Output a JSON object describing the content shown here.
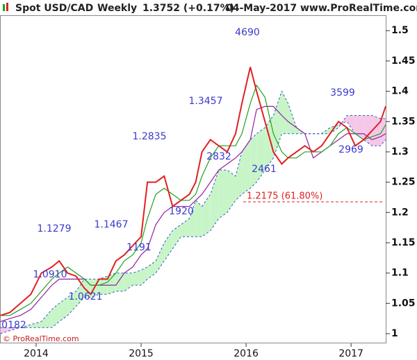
{
  "header": [
    "Spot USD/CAD",
    "Weekly",
    "1.3752 (+0.17%)",
    "04-May-2017",
    "www.ProRealTime.com"
  ],
  "footer": "© ProRealTime.com",
  "chart_data": {
    "type": "line",
    "x": [
      2013.66,
      2013.75,
      2013.85,
      2013.95,
      2014.05,
      2014.15,
      2014.22,
      2014.3,
      2014.38,
      2014.46,
      2014.52,
      2014.6,
      2014.68,
      2014.76,
      2014.84,
      2014.92,
      2015.0,
      2015.06,
      2015.14,
      2015.22,
      2015.3,
      2015.38,
      2015.46,
      2015.52,
      2015.58,
      2015.66,
      2015.74,
      2015.82,
      2015.9,
      2015.96,
      2016.04,
      2016.1,
      2016.18,
      2016.26,
      2016.34,
      2016.4,
      2016.48,
      2016.56,
      2016.64,
      2016.72,
      2016.8,
      2016.88,
      2016.96,
      2017.04,
      2017.12,
      2017.2,
      2017.28,
      2017.33
    ],
    "series": [
      {
        "color": "#e02020",
        "values": [
          1.03,
          1.035,
          1.05,
          1.065,
          1.1,
          1.11,
          1.12,
          1.1,
          1.095,
          1.075,
          1.065,
          1.09,
          1.09,
          1.12,
          1.13,
          1.145,
          1.16,
          1.25,
          1.25,
          1.26,
          1.21,
          1.22,
          1.23,
          1.25,
          1.3,
          1.32,
          1.31,
          1.3,
          1.33,
          1.38,
          1.44,
          1.4,
          1.35,
          1.3,
          1.28,
          1.29,
          1.3,
          1.31,
          1.3,
          1.31,
          1.33,
          1.35,
          1.34,
          1.31,
          1.32,
          1.335,
          1.35,
          1.3752
        ]
      },
      {
        "color": "#20a020",
        "values": [
          1.03,
          1.03,
          1.04,
          1.05,
          1.07,
          1.09,
          1.1,
          1.11,
          1.1,
          1.09,
          1.08,
          1.08,
          1.085,
          1.1,
          1.12,
          1.13,
          1.15,
          1.19,
          1.23,
          1.24,
          1.23,
          1.22,
          1.22,
          1.23,
          1.26,
          1.29,
          1.31,
          1.31,
          1.31,
          1.33,
          1.38,
          1.41,
          1.39,
          1.33,
          1.3,
          1.29,
          1.29,
          1.3,
          1.3,
          1.3,
          1.31,
          1.33,
          1.34,
          1.33,
          1.32,
          1.325,
          1.33,
          1.345
        ]
      },
      {
        "color": "#9020a0",
        "values": [
          1.02,
          1.025,
          1.03,
          1.04,
          1.06,
          1.08,
          1.09,
          1.09,
          1.09,
          1.09,
          1.08,
          1.08,
          1.08,
          1.08,
          1.1,
          1.11,
          1.13,
          1.14,
          1.18,
          1.2,
          1.21,
          1.21,
          1.21,
          1.22,
          1.23,
          1.25,
          1.27,
          1.28,
          1.29,
          1.3,
          1.32,
          1.37,
          1.375,
          1.375,
          1.36,
          1.35,
          1.34,
          1.33,
          1.29,
          1.3,
          1.31,
          1.32,
          1.33,
          1.33,
          1.33,
          1.32,
          1.325,
          1.33
        ]
      }
    ],
    "cloud": {
      "up_color": "#c8f5c8",
      "down_color": "#f5c8e8",
      "line_color": "#3355cc",
      "span_a": [
        1.0,
        1.005,
        1.01,
        1.015,
        1.02,
        1.04,
        1.05,
        1.06,
        1.07,
        1.09,
        1.09,
        1.09,
        1.095,
        1.1,
        1.1,
        1.1,
        1.105,
        1.11,
        1.12,
        1.15,
        1.17,
        1.18,
        1.19,
        1.22,
        1.21,
        1.23,
        1.27,
        1.27,
        1.26,
        1.3,
        1.32,
        1.33,
        1.34,
        1.36,
        1.4,
        1.38,
        1.34,
        1.33,
        1.33,
        1.33,
        1.34,
        1.345,
        1.35,
        1.33,
        1.32,
        1.31,
        1.31,
        1.32
      ],
      "span_b": [
        1.01,
        1.01,
        1.01,
        1.01,
        1.01,
        1.01,
        1.02,
        1.03,
        1.045,
        1.06,
        1.06,
        1.065,
        1.065,
        1.07,
        1.07,
        1.08,
        1.08,
        1.09,
        1.1,
        1.12,
        1.14,
        1.16,
        1.16,
        1.16,
        1.16,
        1.17,
        1.19,
        1.2,
        1.22,
        1.23,
        1.24,
        1.25,
        1.27,
        1.29,
        1.33,
        1.33,
        1.33,
        1.33,
        1.33,
        1.33,
        1.33,
        1.34,
        1.36,
        1.36,
        1.36,
        1.36,
        1.355,
        1.355
      ]
    },
    "levels": [
      {
        "value": 1.2175,
        "label": "1.2175 (61.80%)",
        "color": "#e02020"
      }
    ],
    "annotations": [
      "4690",
      "1.3457",
      "1.2835",
      "2832",
      "1920",
      "1.1467",
      "1.1279",
      "1191",
      "1.0910",
      "1.0621",
      "0182",
      "3599",
      "2969",
      "2461"
    ],
    "xlim": [
      2013.656,
      2017.33
    ],
    "xticks": [
      2014,
      2015,
      2016,
      2017
    ],
    "ylim": [
      0.984,
      1.53
    ],
    "yticks": [
      1,
      1.05,
      1.1,
      1.15,
      1.2,
      1.25,
      1.3,
      1.35,
      1.4,
      1.45,
      1.5
    ]
  }
}
